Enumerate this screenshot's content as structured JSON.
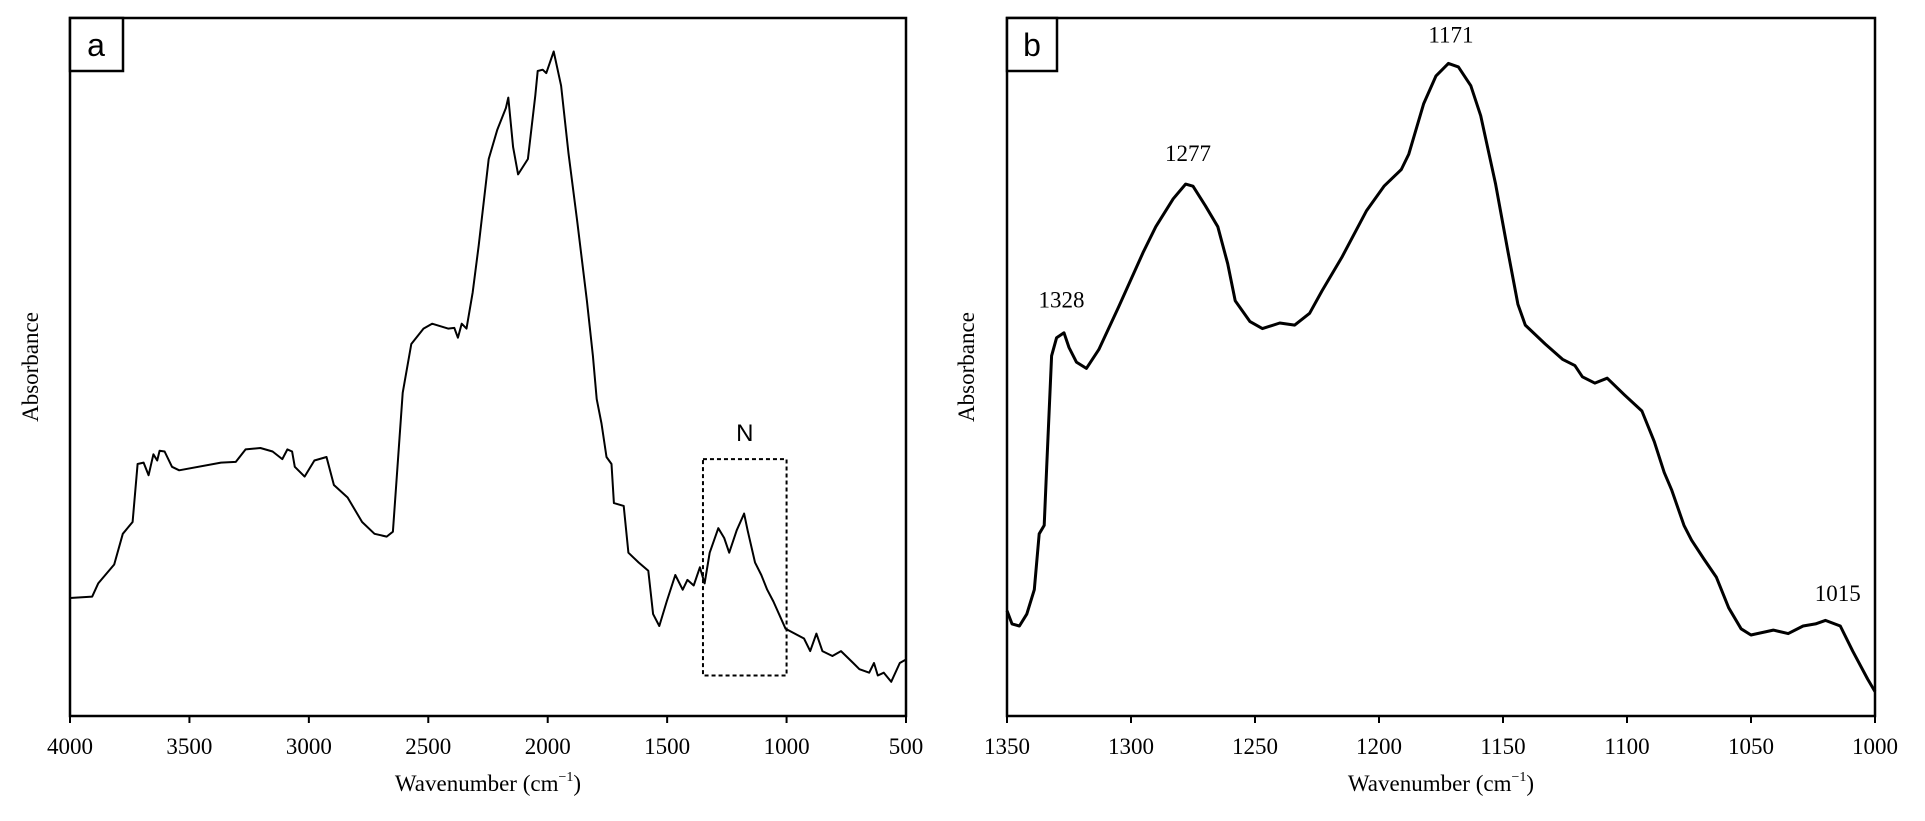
{
  "chart_data": [
    {
      "type": "line",
      "panel_label": "a",
      "title": "",
      "xlabel_main": "Wavenumber (cm",
      "xlabel_sup": "−1",
      "xlabel_end": ")",
      "ylabel": "Absorbance",
      "xlim": [
        4000,
        500
      ],
      "ylim": [
        0,
        100
      ],
      "x_ticks": [
        4000,
        3500,
        3000,
        2500,
        2000,
        1500,
        1000,
        500
      ],
      "x_tick_labels": [
        "4000",
        "3500",
        "3000",
        "2500",
        "2000",
        "1500",
        "1000",
        "500"
      ],
      "y_ticks_shown": false,
      "grid": false,
      "line_color": "#000000",
      "x": [
        4000,
        3907,
        3882,
        3815,
        3779,
        3738,
        3717,
        3692,
        3671,
        3651,
        3635,
        3625,
        3604,
        3573,
        3543,
        3368,
        3306,
        3265,
        3203,
        3152,
        3111,
        3090,
        3070,
        3059,
        3018,
        2977,
        2926,
        2895,
        2838,
        2777,
        2725,
        2674,
        2648,
        2607,
        2571,
        2520,
        2484,
        2417,
        2391,
        2376,
        2360,
        2340,
        2314,
        2289,
        2247,
        2211,
        2175,
        2165,
        2145,
        2124,
        2083,
        2052,
        2042,
        2021,
        2006,
        1975,
        1944,
        1913,
        1877,
        1836,
        1811,
        1795,
        1775,
        1754,
        1733,
        1723,
        1682,
        1662,
        1620,
        1579,
        1559,
        1533,
        1502,
        1466,
        1435,
        1415,
        1389,
        1363,
        1343,
        1322,
        1286,
        1261,
        1240,
        1209,
        1178,
        1163,
        1132,
        1106,
        1081,
        1055,
        1004,
        927,
        901,
        875,
        850,
        808,
        772,
        721,
        695,
        654,
        634,
        618,
        593,
        562,
        526,
        500
      ],
      "y": [
        16.9,
        17.1,
        19.0,
        21.7,
        26.1,
        27.8,
        36.1,
        36.3,
        34.5,
        37.5,
        36.6,
        38.0,
        37.9,
        35.7,
        35.2,
        36.3,
        36.4,
        38.2,
        38.4,
        37.9,
        36.8,
        38.2,
        37.9,
        35.7,
        34.3,
        36.6,
        37.1,
        33.1,
        31.3,
        27.8,
        26.1,
        25.7,
        26.4,
        46.3,
        53.3,
        55.5,
        56.2,
        55.5,
        55.6,
        54.2,
        56.2,
        55.5,
        60.7,
        67.4,
        79.8,
        84.0,
        87.1,
        88.6,
        81.5,
        77.6,
        79.8,
        88.9,
        92.4,
        92.6,
        92.1,
        95.2,
        90.3,
        80.6,
        71.0,
        59.5,
        51.6,
        45.4,
        41.9,
        37.1,
        36.1,
        30.5,
        30.1,
        23.4,
        22.0,
        20.8,
        14.6,
        12.9,
        16.4,
        20.2,
        18.1,
        19.5,
        18.7,
        21.3,
        19.0,
        23.4,
        26.9,
        25.5,
        23.4,
        26.6,
        29.0,
        26.6,
        22.0,
        20.2,
        18.1,
        16.4,
        12.5,
        11.1,
        9.3,
        11.8,
        9.3,
        8.6,
        9.3,
        7.6,
        6.7,
        6.2,
        7.6,
        5.8,
        6.2,
        4.9,
        7.6,
        8.1
      ],
      "region_box": {
        "label": "N",
        "x_range": [
          1350,
          1000
        ],
        "y_range": [
          5.8,
          36.8
        ]
      },
      "annotations": []
    },
    {
      "type": "line",
      "panel_label": "b",
      "title": "",
      "xlabel_main": "Wavenumber (cm",
      "xlabel_sup": "−1",
      "xlabel_end": ")",
      "ylabel": "Absorbance",
      "xlim": [
        1350,
        1000
      ],
      "ylim": [
        0,
        100
      ],
      "x_ticks": [
        1350,
        1300,
        1250,
        1200,
        1150,
        1100,
        1050,
        1000
      ],
      "x_tick_labels": [
        "1350",
        "1300",
        "1250",
        "1200",
        "1150",
        "1100",
        "1050",
        "1000"
      ],
      "y_ticks_shown": false,
      "grid": false,
      "line_color": "#000000",
      "x": [
        1350,
        1348,
        1345,
        1342,
        1339,
        1337,
        1335,
        1334,
        1332,
        1330,
        1327,
        1325,
        1322,
        1318,
        1313,
        1305,
        1295,
        1290,
        1283,
        1278,
        1275,
        1270,
        1265,
        1261,
        1258,
        1252,
        1247,
        1240,
        1234,
        1228,
        1223,
        1215,
        1205,
        1198,
        1191,
        1188,
        1182,
        1177,
        1172,
        1168,
        1163,
        1159,
        1153,
        1148,
        1144,
        1141,
        1133,
        1126,
        1121,
        1118,
        1113,
        1108,
        1101,
        1094,
        1089,
        1085,
        1082,
        1077,
        1074,
        1069,
        1064,
        1059,
        1054,
        1050,
        1041,
        1035,
        1029,
        1024,
        1020,
        1014,
        1009,
        1003,
        1000
      ],
      "y": [
        15.1,
        13.2,
        12.9,
        14.6,
        18.1,
        26.1,
        27.3,
        35.7,
        51.6,
        54.2,
        54.9,
        52.8,
        50.7,
        49.8,
        52.5,
        58.6,
        66.5,
        70.1,
        74.1,
        76.2,
        75.9,
        73.1,
        70.1,
        64.8,
        59.5,
        56.5,
        55.5,
        56.3,
        56.0,
        57.7,
        60.9,
        65.7,
        72.4,
        75.9,
        78.3,
        80.5,
        87.7,
        91.7,
        93.5,
        93.0,
        90.3,
        86.0,
        76.2,
        66.5,
        59.0,
        56.0,
        53.3,
        51.1,
        50.2,
        48.6,
        47.7,
        48.4,
        46.0,
        43.7,
        39.3,
        34.9,
        32.4,
        27.3,
        25.2,
        22.5,
        19.9,
        15.5,
        12.5,
        11.6,
        12.3,
        11.8,
        12.9,
        13.2,
        13.7,
        12.9,
        9.3,
        5.3,
        3.5
      ],
      "region_box": null,
      "annotations": [
        {
          "text": "1328",
          "x": 1328,
          "y": 58.5
        },
        {
          "text": "1277",
          "x": 1277,
          "y": 79.5
        },
        {
          "text": "1171",
          "x": 1171,
          "y": 96.5
        },
        {
          "text": "1015",
          "x": 1015,
          "y": 16.5
        }
      ]
    }
  ]
}
